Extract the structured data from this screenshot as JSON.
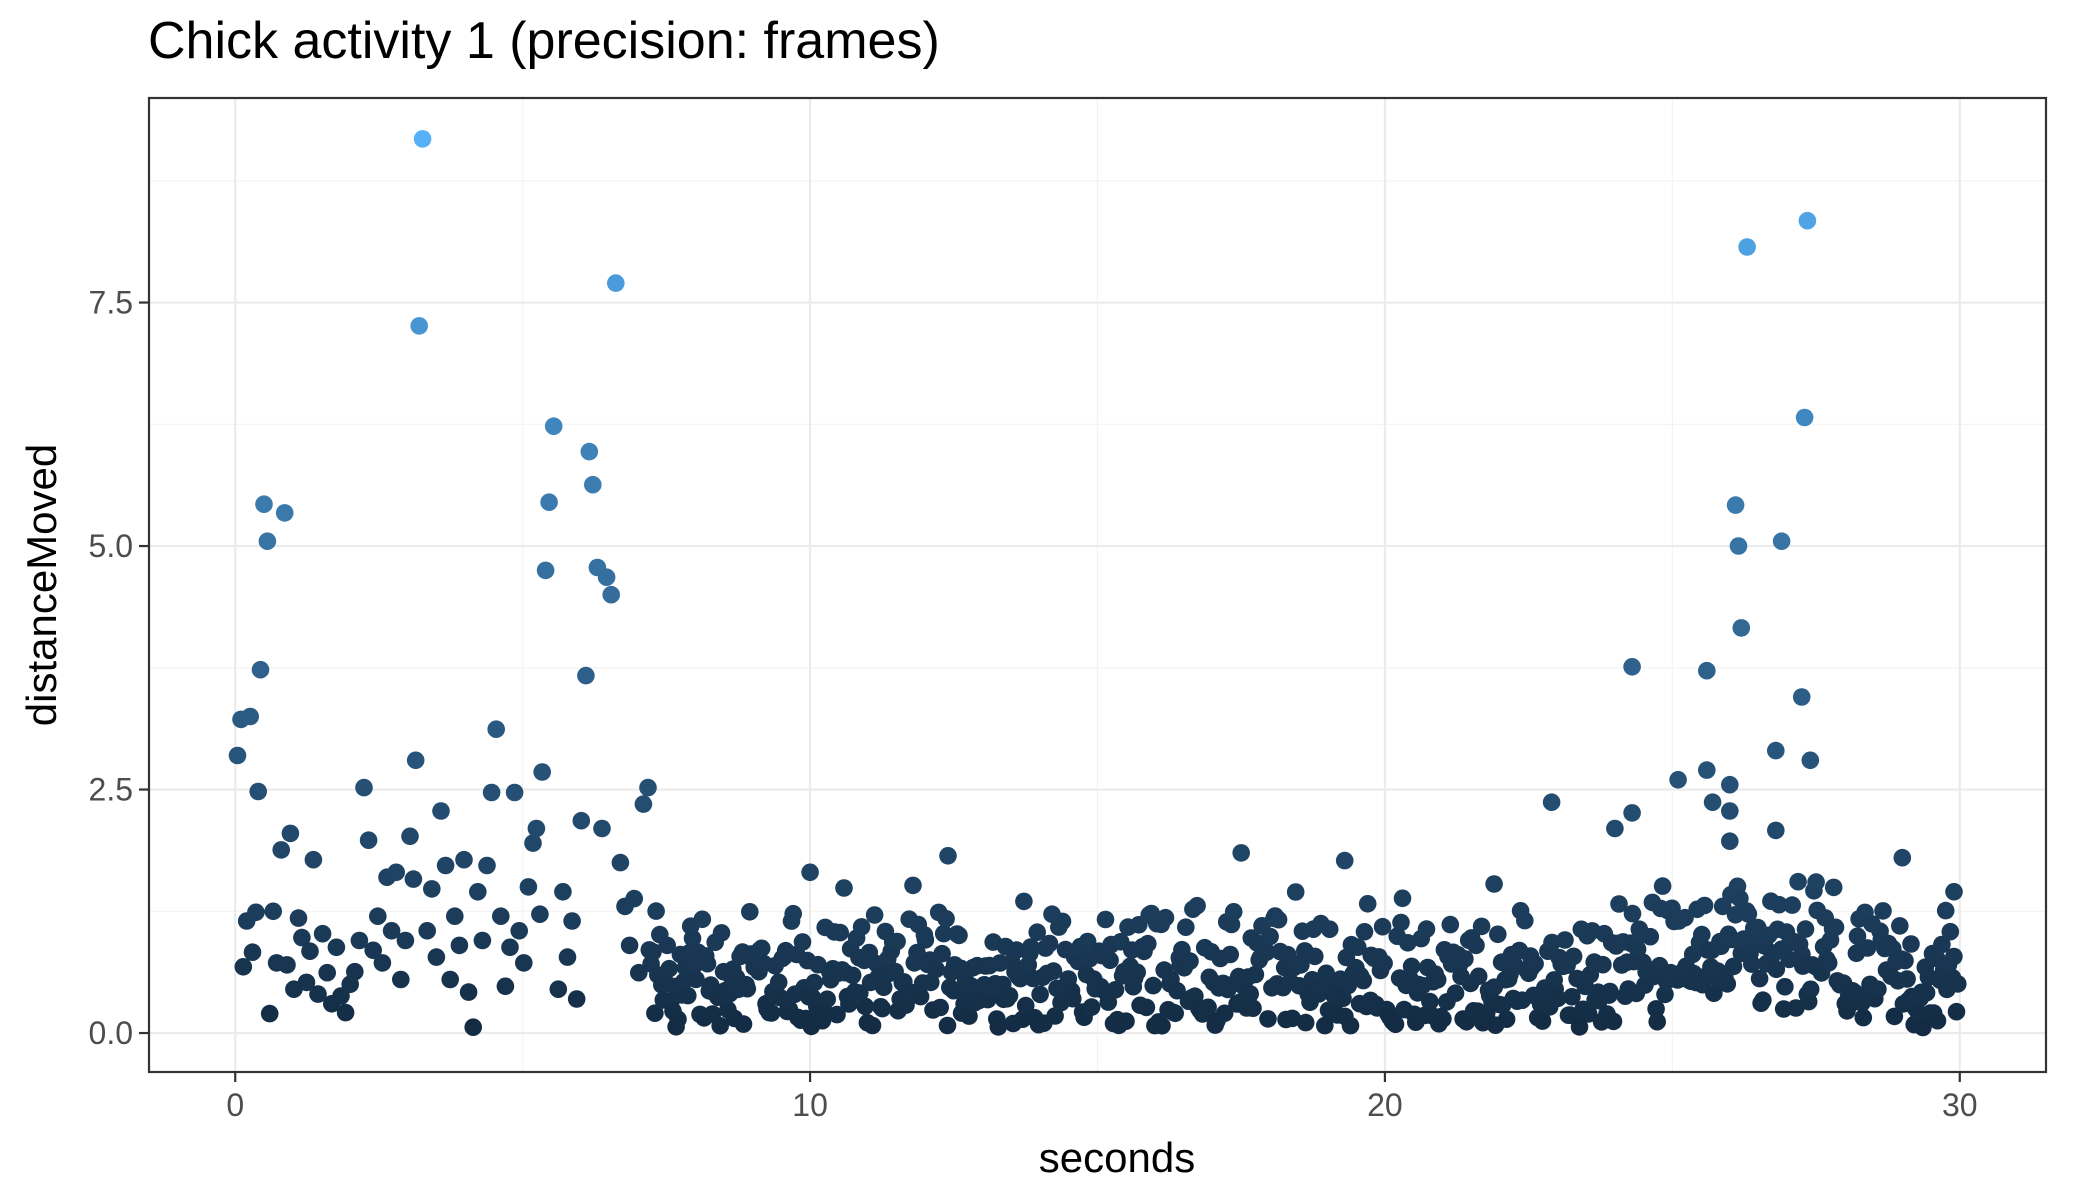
{
  "chart_data": {
    "type": "scatter",
    "title": "Chick activity 1 (precision: frames)",
    "xlabel": "seconds",
    "ylabel": "distanceMoved",
    "xlim": [
      -1.5,
      31.5
    ],
    "ylim": [
      -0.4,
      9.6
    ],
    "x_ticks": [
      0,
      10,
      20,
      30
    ],
    "x_tick_labels": [
      "0",
      "10",
      "20",
      "30"
    ],
    "y_ticks": [
      0,
      2.5,
      5,
      7.5
    ],
    "y_tick_labels": [
      "0.0",
      "2.5",
      "5.0",
      "7.5"
    ],
    "grid": true,
    "legend": "none",
    "color_scale": {
      "low": "#132B43",
      "high": "#56B1F7",
      "value_range": [
        0,
        9.2
      ]
    },
    "series": [
      {
        "x": [
          0.04,
          0.1,
          0.14,
          0.2,
          0.26,
          0.3,
          0.36,
          0.4,
          0.44,
          0.5,
          0.56,
          0.6,
          0.66,
          0.72,
          0.8,
          0.86,
          0.9,
          0.96,
          1.02,
          1.1,
          1.16,
          1.24,
          1.3,
          1.36,
          1.44,
          1.52,
          1.6,
          1.68,
          1.76,
          1.84,
          1.92,
          2.0,
          2.08,
          2.16,
          2.24,
          2.32,
          2.4,
          2.48,
          2.56,
          2.64,
          2.72,
          2.8,
          2.88,
          2.96,
          3.04,
          3.1,
          3.14,
          3.2,
          3.26,
          3.34,
          3.42,
          3.5,
          3.58,
          3.66,
          3.74,
          3.82,
          3.9,
          3.98,
          4.06,
          4.14,
          4.22,
          4.3,
          4.38,
          4.46,
          4.54,
          4.62,
          4.7,
          4.78,
          4.86,
          4.94,
          5.02,
          5.1,
          5.18,
          5.24,
          5.3,
          5.34,
          5.4,
          5.46,
          5.54,
          5.62,
          5.7,
          5.78,
          5.86,
          5.94,
          6.02,
          6.1,
          6.16,
          6.22,
          6.3,
          6.38,
          6.46,
          6.54,
          6.62,
          6.7,
          6.78,
          6.86,
          6.94,
          7.02,
          7.1,
          7.18
        ],
        "y": [
          2.85,
          3.22,
          0.68,
          1.15,
          3.25,
          0.83,
          1.24,
          2.48,
          3.73,
          5.43,
          5.05,
          0.2,
          1.25,
          0.72,
          1.88,
          5.34,
          0.7,
          2.05,
          0.45,
          1.18,
          0.98,
          0.52,
          0.84,
          1.78,
          0.4,
          1.02,
          0.62,
          0.3,
          0.88,
          0.38,
          0.21,
          0.5,
          0.63,
          0.95,
          2.52,
          1.98,
          0.85,
          1.2,
          0.72,
          1.6,
          1.05,
          1.65,
          0.55,
          0.95,
          2.02,
          1.58,
          2.8,
          7.26,
          9.18,
          1.05,
          1.48,
          0.78,
          2.28,
          1.72,
          0.55,
          1.2,
          0.9,
          1.78,
          0.42,
          0.06,
          1.45,
          0.95,
          1.72,
          2.47,
          3.12,
          1.2,
          0.48,
          0.88,
          2.47,
          1.05,
          0.72,
          1.5,
          1.95,
          2.1,
          1.22,
          2.68,
          4.75,
          5.45,
          6.23,
          0.45,
          1.45,
          0.78,
          1.15,
          0.35,
          2.18,
          3.67,
          5.97,
          5.63,
          4.78,
          2.1,
          4.68,
          4.5,
          7.7,
          1.75,
          1.3,
          0.9,
          1.38,
          0.62,
          2.35,
          2.52
        ]
      }
    ]
  }
}
